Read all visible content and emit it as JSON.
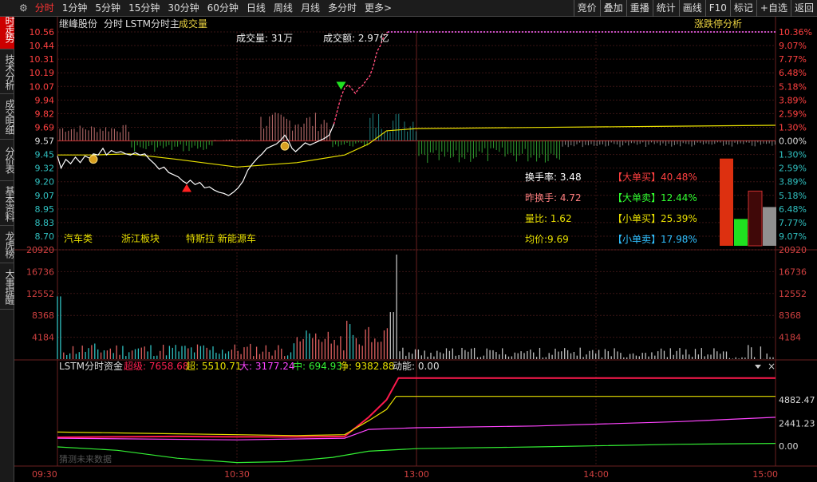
{
  "toolbar": {
    "tabs": [
      "分时",
      "1分钟",
      "5分钟",
      "15分钟",
      "30分钟",
      "60分钟",
      "日线",
      "周线",
      "月线",
      "多分时",
      "更多>"
    ],
    "active": 0,
    "right_buttons": [
      "竞价",
      "叠加",
      "重播",
      "统计",
      "画线",
      "F10",
      "标记",
      "+自选",
      "返回"
    ]
  },
  "sidebar": {
    "tabs": [
      "分时走势",
      "技术分析",
      "成交明细",
      "分价表",
      "基本资料",
      "龙虎榜",
      "大事提醒"
    ],
    "active": 0
  },
  "header": {
    "stock_name": "继峰股份",
    "mode": "分时",
    "indicator": "LSTM分时主",
    "volume_label": "成交量",
    "limit_analysis": "涨跌停分析",
    "volume_text": "成交量: 31万",
    "amount_text": "成交额: 2.97亿"
  },
  "tags": [
    "汽车类",
    "浙江板块",
    "特斯拉 新能源车"
  ],
  "info": {
    "turnover": "换手率: 3.48",
    "prev_turnover": "昨换手: 4.72",
    "volume_ratio": "量比: 1.62",
    "avg_price": "均价:9.69",
    "big_buy": "【大单买】40.48%",
    "big_sell": "【大单卖】12.44%",
    "small_buy": "【小单买】25.39%",
    "small_sell": "【小单卖】17.98%"
  },
  "fund_panel": {
    "title": "LSTM分时资金",
    "super_big": "超级: 7658.68",
    "super": "超: 5510.71",
    "big": "大: 3177.24",
    "mid": "中: 694.93",
    "net": "净: 9382.88",
    "momentum": "动能: 0.00",
    "watermark": "猜测未来数据"
  },
  "chart_data": [
    {
      "type": "line",
      "name": "intraday_price",
      "price_ticks": [
        "10.56",
        "10.44",
        "10.31",
        "10.19",
        "10.07",
        "9.94",
        "9.82",
        "9.69",
        "9.57",
        "9.45",
        "9.32",
        "9.20",
        "9.07",
        "8.95",
        "8.83",
        "8.70"
      ],
      "pct_ticks": [
        "10.36%",
        "9.07%",
        "7.77%",
        "6.48%",
        "5.18%",
        "3.89%",
        "2.59%",
        "1.30%",
        "0.00%",
        "1.30%",
        "2.59%",
        "3.89%",
        "5.18%",
        "6.48%",
        "7.77%",
        "9.07%"
      ],
      "x_ticks": [
        "09:30",
        "10:30",
        "13:00",
        "14:00",
        "15:00"
      ],
      "ylim": [
        8.7,
        10.56
      ],
      "prev_close": 9.57,
      "price_points": [
        [
          0,
          9.43
        ],
        [
          3,
          9.32
        ],
        [
          7,
          9.4
        ],
        [
          11,
          9.36
        ],
        [
          15,
          9.42
        ],
        [
          19,
          9.37
        ],
        [
          23,
          9.43
        ],
        [
          27,
          9.41
        ],
        [
          30,
          9.45
        ],
        [
          34,
          9.44
        ],
        [
          38,
          9.5
        ],
        [
          41,
          9.44
        ],
        [
          45,
          9.48
        ],
        [
          49,
          9.46
        ],
        [
          53,
          9.47
        ],
        [
          57,
          9.45
        ],
        [
          61,
          9.44
        ],
        [
          65,
          9.46
        ],
        [
          69,
          9.44
        ],
        [
          73,
          9.45
        ],
        [
          77,
          9.4
        ],
        [
          81,
          9.36
        ],
        [
          85,
          9.31
        ],
        [
          89,
          9.33
        ],
        [
          93,
          9.28
        ],
        [
          97,
          9.26
        ],
        [
          101,
          9.24
        ],
        [
          105,
          9.2
        ],
        [
          108,
          9.18
        ],
        [
          111,
          9.21
        ],
        [
          115,
          9.17
        ],
        [
          119,
          9.19
        ],
        [
          123,
          9.14
        ],
        [
          127,
          9.15
        ],
        [
          131,
          9.12
        ],
        [
          135,
          9.1
        ],
        [
          139,
          9.09
        ],
        [
          143,
          9.07
        ],
        [
          147,
          9.1
        ],
        [
          151,
          9.14
        ],
        [
          155,
          9.2
        ],
        [
          159,
          9.3
        ],
        [
          163,
          9.36
        ],
        [
          167,
          9.41
        ],
        [
          171,
          9.45
        ],
        [
          175,
          9.5
        ],
        [
          179,
          9.52
        ],
        [
          183,
          9.54
        ],
        [
          187,
          9.58
        ],
        [
          190,
          9.62
        ],
        [
          193,
          9.57
        ],
        [
          196,
          9.5
        ],
        [
          199,
          9.47
        ],
        [
          203,
          9.51
        ],
        [
          207,
          9.55
        ],
        [
          211,
          9.53
        ],
        [
          215,
          9.55
        ],
        [
          219,
          9.57
        ],
        [
          223,
          9.59
        ],
        [
          227,
          9.62
        ],
        [
          231,
          9.72
        ],
        [
          234,
          9.85
        ],
        [
          237,
          9.97
        ],
        [
          240,
          10.05
        ],
        [
          243,
          10.08
        ],
        [
          246,
          10.04
        ],
        [
          249,
          10.0
        ],
        [
          252,
          10.05
        ],
        [
          255,
          10.07
        ],
        [
          258,
          10.12
        ],
        [
          261,
          10.16
        ],
        [
          264,
          10.25
        ],
        [
          267,
          10.38
        ],
        [
          270,
          10.44
        ],
        [
          273,
          10.53
        ],
        [
          276,
          10.56
        ],
        [
          280,
          10.56
        ],
        [
          300,
          10.56
        ],
        [
          320,
          10.56
        ],
        [
          340,
          10.56
        ],
        [
          360,
          10.56
        ],
        [
          380,
          10.56
        ],
        [
          400,
          10.56
        ],
        [
          420,
          10.56
        ],
        [
          440,
          10.56
        ],
        [
          460,
          10.56
        ],
        [
          480,
          10.56
        ],
        [
          500,
          10.56
        ],
        [
          520,
          10.56
        ],
        [
          540,
          10.56
        ],
        [
          560,
          10.56
        ],
        [
          580,
          10.56
        ],
        [
          600,
          10.56
        ]
      ],
      "avg_points": [
        [
          0,
          9.44
        ],
        [
          30,
          9.44
        ],
        [
          60,
          9.45
        ],
        [
          100,
          9.4
        ],
        [
          150,
          9.33
        ],
        [
          200,
          9.37
        ],
        [
          240,
          9.44
        ],
        [
          260,
          9.54
        ],
        [
          275,
          9.66
        ],
        [
          300,
          9.68
        ],
        [
          400,
          9.69
        ],
        [
          500,
          9.7
        ],
        [
          600,
          9.71
        ]
      ]
    },
    {
      "type": "bar",
      "name": "volume",
      "y_ticks": [
        "20920",
        "16736",
        "12552",
        "8368",
        "4184"
      ],
      "ylim": [
        0,
        20920
      ]
    },
    {
      "type": "line",
      "name": "lstm_fund_flow",
      "y_ticks": [
        "4882.47",
        "2441.23",
        "0.00"
      ],
      "series": [
        {
          "name": "超级",
          "color": "#ff1a4d",
          "points": [
            [
              0,
              1
            ],
            [
              50,
              1.05
            ],
            [
              100,
              1.1
            ],
            [
              150,
              1.05
            ],
            [
              200,
              1.05
            ],
            [
              240,
              1.1
            ],
            [
              260,
              3.3
            ],
            [
              275,
              5.3
            ],
            [
              285,
              7.8
            ],
            [
              600,
              7.8
            ]
          ]
        },
        {
          "name": "超",
          "color": "#e8e000",
          "points": [
            [
              0,
              1.6
            ],
            [
              50,
              1.5
            ],
            [
              100,
              1.4
            ],
            [
              150,
              1.3
            ],
            [
              200,
              1.2
            ],
            [
              240,
              1.3
            ],
            [
              260,
              2.9
            ],
            [
              275,
              4.2
            ],
            [
              283,
              5.7
            ],
            [
              600,
              5.7
            ]
          ]
        },
        {
          "name": "大",
          "color": "#ff44ff",
          "points": [
            [
              0,
              0.9
            ],
            [
              150,
              0.7
            ],
            [
              240,
              0.9
            ],
            [
              260,
              1.9
            ],
            [
              300,
              2.1
            ],
            [
              400,
              2.3
            ],
            [
              520,
              2.8
            ],
            [
              600,
              3.3
            ]
          ]
        },
        {
          "name": "中",
          "color": "#33ee33",
          "points": [
            [
              0,
              -0.1
            ],
            [
              50,
              -0.5
            ],
            [
              100,
              -1.4
            ],
            [
              150,
              -1.9
            ],
            [
              190,
              -1.8
            ],
            [
              230,
              -1.3
            ],
            [
              260,
              -0.6
            ],
            [
              300,
              -0.3
            ],
            [
              400,
              -0.1
            ],
            [
              520,
              0.2
            ],
            [
              600,
              0.3
            ]
          ]
        }
      ]
    }
  ]
}
